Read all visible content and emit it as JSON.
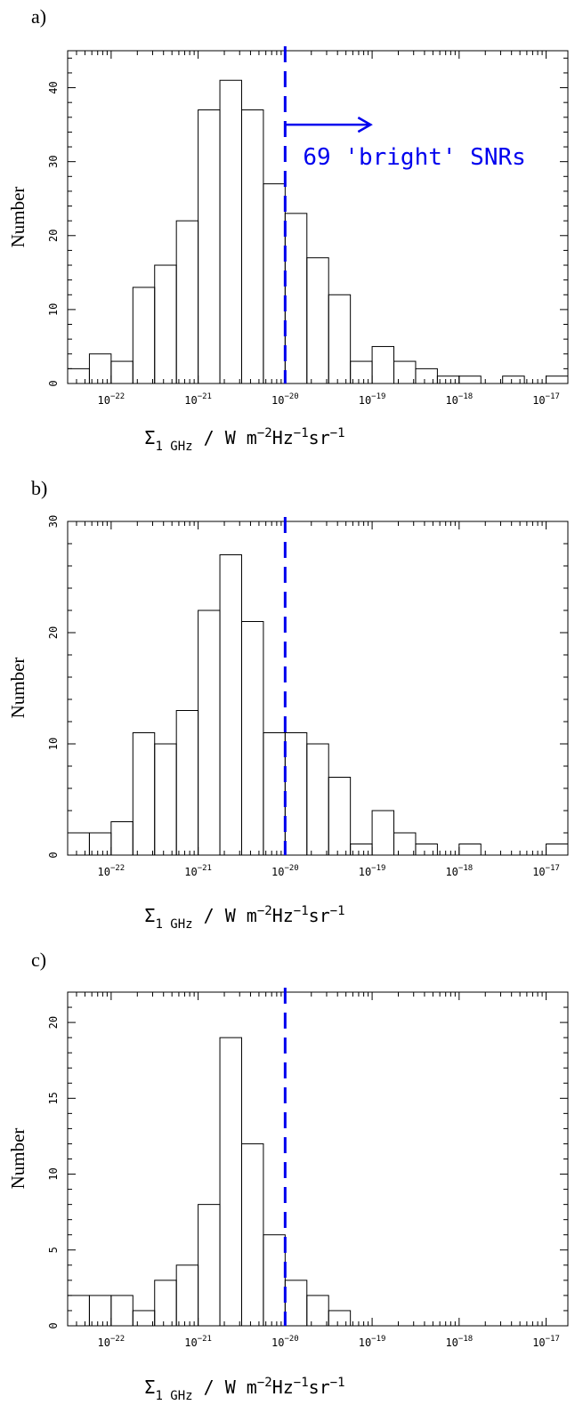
{
  "colors": {
    "axis": "#000000",
    "bar": "#000000",
    "threshold": "#0000ee"
  },
  "chart_data": [
    {
      "type": "bar",
      "panel_label": "a)",
      "ylabel": "Number",
      "xlabel": "Σ1 GHz / W m−2Hz−1sr−1",
      "x_scale": "log",
      "xlim": [
        -22.5,
        -16.75
      ],
      "ylim": [
        0,
        45
      ],
      "y_ticks": [
        0,
        10,
        20,
        30,
        40
      ],
      "x_ticks": [
        {
          "value": -22,
          "base": "10",
          "exp": "−22"
        },
        {
          "value": -21,
          "base": "10",
          "exp": "−21"
        },
        {
          "value": -20,
          "base": "10",
          "exp": "−20"
        },
        {
          "value": -19,
          "base": "10",
          "exp": "−19"
        },
        {
          "value": -18,
          "base": "10",
          "exp": "−18"
        },
        {
          "value": -17,
          "base": "10",
          "exp": "−17"
        }
      ],
      "bin_start": -22.5,
      "bin_width": 0.25,
      "values": [
        2,
        4,
        3,
        13,
        16,
        22,
        37,
        41,
        37,
        27,
        23,
        17,
        12,
        3,
        5,
        3,
        2,
        1,
        1,
        0,
        1,
        0,
        1
      ],
      "threshold": -20,
      "annotation": "69 'bright' SNRs"
    },
    {
      "type": "bar",
      "panel_label": "b)",
      "ylabel": "Number",
      "xlabel": "Σ1 GHz / W m−2Hz−1sr−1",
      "x_scale": "log",
      "xlim": [
        -22.5,
        -16.75
      ],
      "ylim": [
        0,
        30
      ],
      "y_ticks": [
        0,
        10,
        20,
        30
      ],
      "x_ticks": [
        {
          "value": -22,
          "base": "10",
          "exp": "−22"
        },
        {
          "value": -21,
          "base": "10",
          "exp": "−21"
        },
        {
          "value": -20,
          "base": "10",
          "exp": "−20"
        },
        {
          "value": -19,
          "base": "10",
          "exp": "−19"
        },
        {
          "value": -18,
          "base": "10",
          "exp": "−18"
        },
        {
          "value": -17,
          "base": "10",
          "exp": "−17"
        }
      ],
      "bin_start": -22.5,
      "bin_width": 0.25,
      "values": [
        2,
        2,
        3,
        11,
        10,
        13,
        22,
        27,
        21,
        11,
        11,
        10,
        7,
        1,
        4,
        2,
        1,
        0,
        1,
        0,
        0,
        0,
        1
      ],
      "threshold": -20,
      "annotation": ""
    },
    {
      "type": "bar",
      "panel_label": "c)",
      "ylabel": "Number",
      "xlabel": "Σ1 GHz / W m−2Hz−1sr−1",
      "x_scale": "log",
      "xlim": [
        -22.5,
        -16.75
      ],
      "ylim": [
        0,
        22
      ],
      "y_ticks": [
        0,
        5,
        10,
        15,
        20
      ],
      "x_ticks": [
        {
          "value": -22,
          "base": "10",
          "exp": "−22"
        },
        {
          "value": -21,
          "base": "10",
          "exp": "−21"
        },
        {
          "value": -20,
          "base": "10",
          "exp": "−20"
        },
        {
          "value": -19,
          "base": "10",
          "exp": "−19"
        },
        {
          "value": -18,
          "base": "10",
          "exp": "−18"
        },
        {
          "value": -17,
          "base": "10",
          "exp": "−17"
        }
      ],
      "bin_start": -22.5,
      "bin_width": 0.25,
      "values": [
        2,
        2,
        2,
        1,
        3,
        4,
        8,
        19,
        12,
        6,
        3,
        2,
        1,
        0,
        0,
        0,
        0,
        0,
        0,
        0,
        0,
        0,
        0
      ],
      "threshold": -20,
      "annotation": ""
    }
  ]
}
